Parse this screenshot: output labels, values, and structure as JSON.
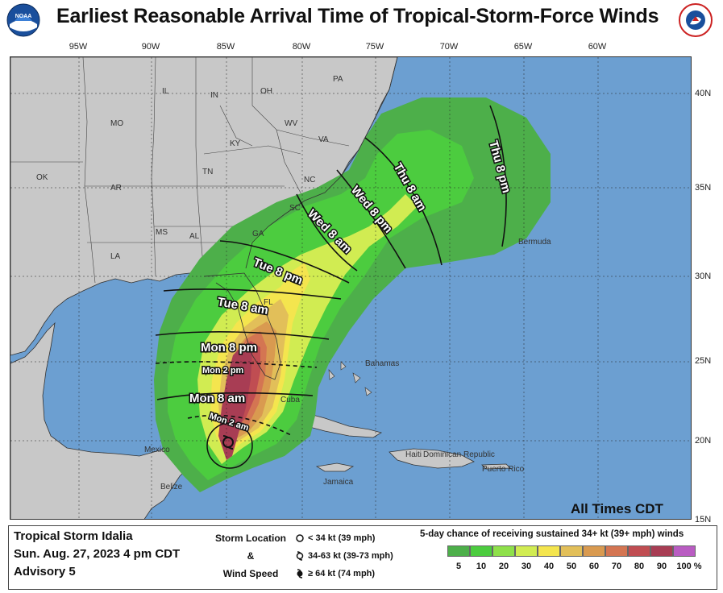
{
  "header": {
    "title": "Earliest Reasonable Arrival Time of Tropical-Storm-Force Winds",
    "noaa_logo_text": "NOAA",
    "nws_logo_text": "NATIONAL WEATHER SERVICE"
  },
  "axes": {
    "longitudes": [
      "95W",
      "90W",
      "85W",
      "80W",
      "75W",
      "70W",
      "65W",
      "60W"
    ],
    "latitudes": [
      "40N",
      "35N",
      "30N",
      "25N",
      "20N",
      "15N"
    ]
  },
  "places": {
    "states": [
      "PA",
      "OH",
      "IN",
      "IL",
      "MO",
      "WV",
      "VA",
      "KY",
      "TN",
      "NC",
      "OK",
      "AR",
      "SC",
      "MS",
      "AL",
      "GA",
      "LA",
      "FL"
    ],
    "countries": [
      "Mexico",
      "Cuba",
      "Bahamas",
      "Bermuda",
      "Belize",
      "Jamaica",
      "Haiti",
      "Dominican Republic",
      "Puerto Rico"
    ]
  },
  "arrival_times": [
    "Mon 2 am",
    "Mon 8 am",
    "Mon 2 pm",
    "Mon 8 pm",
    "Tue 8 am",
    "Tue 8 pm",
    "Wed 8 am",
    "Wed 8 pm",
    "Thu 8 am",
    "Thu 8 pm"
  ],
  "all_times": "All Times CDT",
  "storm": {
    "name": "Tropical Storm Idalia",
    "datetime": "Sun. Aug. 27, 2023  4 pm CDT",
    "advisory": "Advisory 5"
  },
  "legend": {
    "label_line1": "Storm Location",
    "label_line2": "&",
    "label_line3": "Wind Speed",
    "sym1": "< 34 kt (39 mph)",
    "sym2": "34-63 kt (39-73 mph)",
    "sym3": "≥ 64 kt (74 mph)",
    "prob_title": "5-day chance of receiving sustained 34+ kt (39+ mph) winds",
    "prob_labels": [
      "5",
      "10",
      "20",
      "30",
      "40",
      "50",
      "60",
      "70",
      "80",
      "90",
      "100 %"
    ],
    "colors": {
      "p5": "#4daf4a",
      "p10": "#4ccc3f",
      "p20": "#8ee04a",
      "p30": "#d1ec52",
      "p40": "#f4e54e",
      "p50": "#e2bf59",
      "p60": "#d99a50",
      "p70": "#d47552",
      "p80": "#c04d52",
      "p90": "#a83d54",
      "p100": "#b95cc2"
    }
  },
  "map_colors": {
    "ocean": "#6c9fd1",
    "land": "#c8c8c8",
    "land_border": "#333333",
    "grid": "#222222"
  }
}
